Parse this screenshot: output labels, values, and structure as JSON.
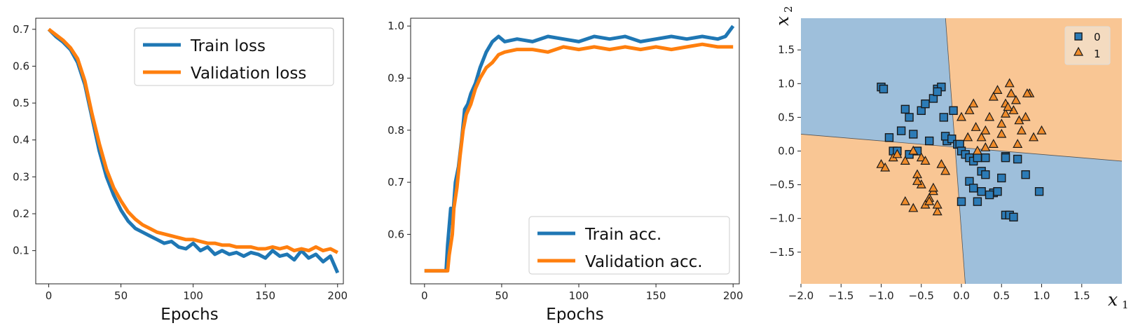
{
  "colors": {
    "train": "#1f77b4",
    "validation": "#ff7f0e",
    "region0": "#9ebfdb",
    "region1": "#f9c694",
    "marker0": "#2c7bb6",
    "marker1": "#f08c2b"
  },
  "chart_data": [
    {
      "type": "line",
      "xlabel": "Epochs",
      "ylabel": "",
      "xlim": [
        -9,
        204
      ],
      "ylim": [
        0.01,
        0.73
      ],
      "xticks": [
        0,
        50,
        100,
        150,
        200
      ],
      "yticks": [
        0.1,
        0.2,
        0.3,
        0.4,
        0.5,
        0.6,
        0.7
      ],
      "legend_position": "top-right",
      "series": [
        {
          "name": "Train loss",
          "x": [
            0,
            5,
            10,
            15,
            20,
            25,
            30,
            35,
            40,
            45,
            50,
            55,
            60,
            65,
            70,
            75,
            80,
            85,
            90,
            95,
            100,
            105,
            110,
            115,
            120,
            125,
            130,
            135,
            140,
            145,
            150,
            155,
            160,
            165,
            170,
            175,
            180,
            185,
            190,
            195,
            200
          ],
          "y": [
            0.7,
            0.68,
            0.665,
            0.645,
            0.61,
            0.55,
            0.46,
            0.37,
            0.3,
            0.25,
            0.21,
            0.18,
            0.16,
            0.15,
            0.14,
            0.13,
            0.12,
            0.125,
            0.11,
            0.105,
            0.12,
            0.1,
            0.11,
            0.09,
            0.1,
            0.09,
            0.095,
            0.085,
            0.095,
            0.09,
            0.08,
            0.1,
            0.085,
            0.09,
            0.075,
            0.1,
            0.08,
            0.09,
            0.07,
            0.085,
            0.04
          ]
        },
        {
          "name": "Validation loss",
          "x": [
            0,
            5,
            10,
            15,
            20,
            25,
            30,
            35,
            40,
            45,
            50,
            55,
            60,
            65,
            70,
            75,
            80,
            85,
            90,
            95,
            100,
            105,
            110,
            115,
            120,
            125,
            130,
            135,
            140,
            145,
            150,
            155,
            160,
            165,
            170,
            175,
            180,
            185,
            190,
            195,
            200
          ],
          "y": [
            0.7,
            0.685,
            0.67,
            0.65,
            0.62,
            0.56,
            0.47,
            0.39,
            0.32,
            0.27,
            0.235,
            0.205,
            0.185,
            0.17,
            0.16,
            0.15,
            0.145,
            0.14,
            0.135,
            0.13,
            0.13,
            0.125,
            0.12,
            0.12,
            0.115,
            0.115,
            0.11,
            0.11,
            0.11,
            0.105,
            0.105,
            0.11,
            0.105,
            0.11,
            0.1,
            0.105,
            0.1,
            0.11,
            0.1,
            0.105,
            0.095
          ]
        }
      ]
    },
    {
      "type": "line",
      "xlabel": "Epochs",
      "ylabel": "",
      "xlim": [
        -9,
        204
      ],
      "ylim": [
        0.505,
        1.015
      ],
      "xticks": [
        0,
        50,
        100,
        150,
        200
      ],
      "yticks": [
        0.6,
        0.7,
        0.8,
        0.9,
        1.0
      ],
      "legend_position": "bottom-right",
      "series": [
        {
          "name": "Train acc.",
          "x": [
            0,
            5,
            10,
            14,
            15,
            17,
            18,
            20,
            22,
            24,
            26,
            28,
            30,
            33,
            36,
            40,
            44,
            48,
            52,
            60,
            70,
            80,
            90,
            100,
            110,
            120,
            130,
            140,
            150,
            160,
            170,
            180,
            190,
            195,
            200
          ],
          "y": [
            0.53,
            0.53,
            0.53,
            0.53,
            0.58,
            0.65,
            0.62,
            0.7,
            0.73,
            0.78,
            0.84,
            0.85,
            0.87,
            0.89,
            0.92,
            0.95,
            0.97,
            0.98,
            0.97,
            0.975,
            0.97,
            0.98,
            0.975,
            0.97,
            0.98,
            0.975,
            0.98,
            0.97,
            0.975,
            0.98,
            0.975,
            0.98,
            0.975,
            0.98,
            1.0
          ]
        },
        {
          "name": "Validation acc.",
          "x": [
            0,
            5,
            10,
            15,
            16,
            18,
            19,
            21,
            23,
            25,
            27,
            30,
            33,
            36,
            40,
            44,
            48,
            52,
            60,
            70,
            80,
            90,
            100,
            110,
            120,
            130,
            140,
            150,
            160,
            170,
            180,
            190,
            200
          ],
          "y": [
            0.53,
            0.53,
            0.53,
            0.53,
            0.56,
            0.6,
            0.65,
            0.69,
            0.75,
            0.8,
            0.83,
            0.85,
            0.88,
            0.9,
            0.92,
            0.93,
            0.945,
            0.95,
            0.955,
            0.955,
            0.95,
            0.96,
            0.955,
            0.96,
            0.955,
            0.96,
            0.955,
            0.96,
            0.955,
            0.96,
            0.965,
            0.96,
            0.96
          ]
        }
      ]
    },
    {
      "type": "scatter",
      "xlabel": "x1",
      "ylabel": "x2",
      "xlim": [
        -2.0,
        2.0
      ],
      "ylim": [
        -1.97,
        1.97
      ],
      "xticks": [
        -2.0,
        -1.5,
        -1.0,
        -0.5,
        0.0,
        0.5,
        1.0,
        1.5
      ],
      "yticks": [
        -1.5,
        -1.0,
        -0.5,
        0.0,
        0.5,
        1.0,
        1.5
      ],
      "legend_position": "top-right",
      "boundaries": [
        {
          "from": [
            -0.2,
            2.0
          ],
          "to": [
            0.05,
            -2.0
          ]
        },
        {
          "from": [
            -2.0,
            0.25
          ],
          "to": [
            2.0,
            -0.15
          ]
        }
      ],
      "series": [
        {
          "name": "0",
          "marker": "square",
          "x": [
            -1.0,
            -0.97,
            -0.9,
            -0.85,
            -0.75,
            -0.7,
            -0.65,
            -0.6,
            -0.5,
            -0.45,
            -0.35,
            -0.3,
            -0.25,
            -0.22,
            -0.3,
            -0.1,
            -0.18,
            -0.55,
            -0.4,
            -0.2,
            -0.12,
            -0.05,
            -0.02,
            0.0,
            0.05,
            0.1,
            0.15,
            0.2,
            0.25,
            0.3,
            0.1,
            0.15,
            0.25,
            0.4,
            0.5,
            0.55,
            0.7,
            0.8,
            0.2,
            0.3,
            0.35,
            0.45,
            0.55,
            0.6,
            0.65,
            0.97,
            0.55,
            0.0,
            -0.8,
            -0.65
          ],
          "y": [
            0.95,
            0.92,
            0.2,
            0.0,
            0.3,
            0.62,
            0.5,
            0.25,
            0.6,
            0.7,
            0.78,
            0.92,
            0.95,
            0.5,
            0.88,
            0.6,
            0.15,
            0.0,
            0.15,
            0.22,
            0.18,
            0.1,
            0.1,
            0.0,
            -0.05,
            -0.1,
            -0.15,
            -0.1,
            -0.3,
            -0.35,
            -0.45,
            -0.55,
            -0.6,
            -0.62,
            -0.4,
            -0.08,
            -0.12,
            -0.35,
            -0.75,
            -0.1,
            -0.65,
            -0.6,
            -0.95,
            -0.95,
            -0.98,
            -0.6,
            -0.1,
            -0.75,
            0.0,
            -0.05
          ]
        },
        {
          "name": "1",
          "marker": "triangle",
          "x": [
            0.0,
            0.1,
            0.15,
            0.2,
            0.25,
            0.3,
            0.35,
            0.4,
            0.45,
            0.5,
            0.55,
            0.6,
            0.65,
            0.7,
            0.75,
            0.8,
            0.85,
            0.9,
            1.0,
            0.4,
            0.55,
            0.62,
            0.72,
            0.82,
            0.3,
            0.18,
            0.08,
            0.5,
            0.58,
            0.68,
            -1.0,
            -0.95,
            -0.85,
            -0.8,
            -0.7,
            -0.6,
            -0.55,
            -0.5,
            -0.45,
            -0.4,
            -0.35,
            -0.3,
            -0.25,
            -0.2,
            -0.5,
            -0.45,
            -0.7,
            -0.6,
            -0.35,
            -0.3,
            -0.55,
            -0.4
          ],
          "y": [
            0.5,
            0.6,
            0.7,
            0.0,
            0.2,
            0.3,
            0.5,
            0.8,
            0.9,
            0.4,
            0.7,
            1.0,
            0.6,
            0.1,
            0.3,
            0.5,
            0.85,
            0.2,
            0.3,
            0.1,
            0.55,
            0.85,
            0.45,
            0.85,
            0.05,
            0.35,
            0.2,
            0.25,
            0.65,
            0.75,
            -0.2,
            -0.25,
            -0.1,
            -0.05,
            -0.15,
            0.0,
            -0.35,
            -0.5,
            -0.8,
            -0.7,
            -0.6,
            -0.9,
            -0.2,
            -0.3,
            -0.1,
            -0.15,
            -0.75,
            -0.85,
            -0.55,
            -0.8,
            -0.45,
            -0.75
          ]
        }
      ]
    }
  ]
}
